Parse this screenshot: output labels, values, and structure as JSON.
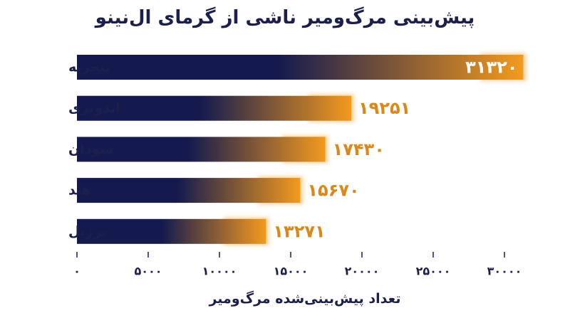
{
  "chart_data": {
    "type": "bar",
    "orientation": "horizontal",
    "title": "پیش‌بینی مرگ‌ومیر ناشی از گرمای ال‌نینو",
    "xlabel": "تعداد پیش‌بینی‌شده مرگ‌ومیر",
    "ylabel": "",
    "categories": [
      "نیجریه",
      "اندونزی",
      "سودان",
      "هند",
      "برزیل"
    ],
    "values": [
      31320,
      19251,
      17430,
      15670,
      13271
    ],
    "value_labels": [
      "۳۱۳۲۰",
      "۱۹۲۵۱",
      "۱۷۴۳۰",
      "۱۵۶۷۰",
      "۱۳۲۷۱"
    ],
    "xlim": [
      0,
      32000
    ],
    "xticks": [
      0,
      5000,
      10000,
      15000,
      20000,
      25000,
      30000
    ],
    "xtick_labels": [
      "۰",
      "۵۰۰۰",
      "۱۰۰۰۰",
      "۱۵۰۰۰",
      "۲۰۰۰۰",
      "۲۵۰۰۰",
      "۳۰۰۰۰"
    ],
    "grid": false,
    "legend": "none",
    "colors": {
      "bar_start": "#141a4e",
      "bar_end": "#f39a1e",
      "value_inside": "#ffffff",
      "value_outside": "#d8891a",
      "text": "#1b1f4b",
      "tick_mark": "#1b1f4b"
    }
  }
}
